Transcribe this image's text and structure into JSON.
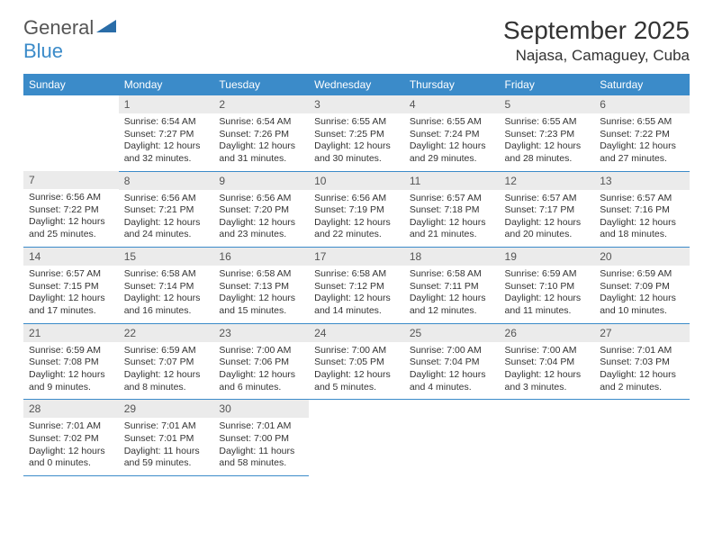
{
  "logo": {
    "main": "General",
    "sub": "Blue"
  },
  "title": "September 2025",
  "location": "Najasa, Camaguey, Cuba",
  "headers": [
    "Sunday",
    "Monday",
    "Tuesday",
    "Wednesday",
    "Thursday",
    "Friday",
    "Saturday"
  ],
  "colors": {
    "header_bg": "#3b8bc9",
    "header_text": "#ffffff",
    "daynum_bg": "#ebebeb",
    "border": "#3b8bc9",
    "logo_main": "#555555",
    "logo_sub": "#3b8bc9"
  },
  "weeks": [
    [
      null,
      {
        "n": "1",
        "sr": "6:54 AM",
        "ss": "7:27 PM",
        "dl": "12 hours and 32 minutes."
      },
      {
        "n": "2",
        "sr": "6:54 AM",
        "ss": "7:26 PM",
        "dl": "12 hours and 31 minutes."
      },
      {
        "n": "3",
        "sr": "6:55 AM",
        "ss": "7:25 PM",
        "dl": "12 hours and 30 minutes."
      },
      {
        "n": "4",
        "sr": "6:55 AM",
        "ss": "7:24 PM",
        "dl": "12 hours and 29 minutes."
      },
      {
        "n": "5",
        "sr": "6:55 AM",
        "ss": "7:23 PM",
        "dl": "12 hours and 28 minutes."
      },
      {
        "n": "6",
        "sr": "6:55 AM",
        "ss": "7:22 PM",
        "dl": "12 hours and 27 minutes."
      }
    ],
    [
      {
        "n": "7",
        "sr": "6:56 AM",
        "ss": "7:22 PM",
        "dl": "12 hours and 25 minutes."
      },
      {
        "n": "8",
        "sr": "6:56 AM",
        "ss": "7:21 PM",
        "dl": "12 hours and 24 minutes."
      },
      {
        "n": "9",
        "sr": "6:56 AM",
        "ss": "7:20 PM",
        "dl": "12 hours and 23 minutes."
      },
      {
        "n": "10",
        "sr": "6:56 AM",
        "ss": "7:19 PM",
        "dl": "12 hours and 22 minutes."
      },
      {
        "n": "11",
        "sr": "6:57 AM",
        "ss": "7:18 PM",
        "dl": "12 hours and 21 minutes."
      },
      {
        "n": "12",
        "sr": "6:57 AM",
        "ss": "7:17 PM",
        "dl": "12 hours and 20 minutes."
      },
      {
        "n": "13",
        "sr": "6:57 AM",
        "ss": "7:16 PM",
        "dl": "12 hours and 18 minutes."
      }
    ],
    [
      {
        "n": "14",
        "sr": "6:57 AM",
        "ss": "7:15 PM",
        "dl": "12 hours and 17 minutes."
      },
      {
        "n": "15",
        "sr": "6:58 AM",
        "ss": "7:14 PM",
        "dl": "12 hours and 16 minutes."
      },
      {
        "n": "16",
        "sr": "6:58 AM",
        "ss": "7:13 PM",
        "dl": "12 hours and 15 minutes."
      },
      {
        "n": "17",
        "sr": "6:58 AM",
        "ss": "7:12 PM",
        "dl": "12 hours and 14 minutes."
      },
      {
        "n": "18",
        "sr": "6:58 AM",
        "ss": "7:11 PM",
        "dl": "12 hours and 12 minutes."
      },
      {
        "n": "19",
        "sr": "6:59 AM",
        "ss": "7:10 PM",
        "dl": "12 hours and 11 minutes."
      },
      {
        "n": "20",
        "sr": "6:59 AM",
        "ss": "7:09 PM",
        "dl": "12 hours and 10 minutes."
      }
    ],
    [
      {
        "n": "21",
        "sr": "6:59 AM",
        "ss": "7:08 PM",
        "dl": "12 hours and 9 minutes."
      },
      {
        "n": "22",
        "sr": "6:59 AM",
        "ss": "7:07 PM",
        "dl": "12 hours and 8 minutes."
      },
      {
        "n": "23",
        "sr": "7:00 AM",
        "ss": "7:06 PM",
        "dl": "12 hours and 6 minutes."
      },
      {
        "n": "24",
        "sr": "7:00 AM",
        "ss": "7:05 PM",
        "dl": "12 hours and 5 minutes."
      },
      {
        "n": "25",
        "sr": "7:00 AM",
        "ss": "7:04 PM",
        "dl": "12 hours and 4 minutes."
      },
      {
        "n": "26",
        "sr": "7:00 AM",
        "ss": "7:04 PM",
        "dl": "12 hours and 3 minutes."
      },
      {
        "n": "27",
        "sr": "7:01 AM",
        "ss": "7:03 PM",
        "dl": "12 hours and 2 minutes."
      }
    ],
    [
      {
        "n": "28",
        "sr": "7:01 AM",
        "ss": "7:02 PM",
        "dl": "12 hours and 0 minutes."
      },
      {
        "n": "29",
        "sr": "7:01 AM",
        "ss": "7:01 PM",
        "dl": "11 hours and 59 minutes."
      },
      {
        "n": "30",
        "sr": "7:01 AM",
        "ss": "7:00 PM",
        "dl": "11 hours and 58 minutes."
      },
      null,
      null,
      null,
      null
    ]
  ],
  "labels": {
    "sunrise": "Sunrise:",
    "sunset": "Sunset:",
    "daylight": "Daylight:"
  }
}
